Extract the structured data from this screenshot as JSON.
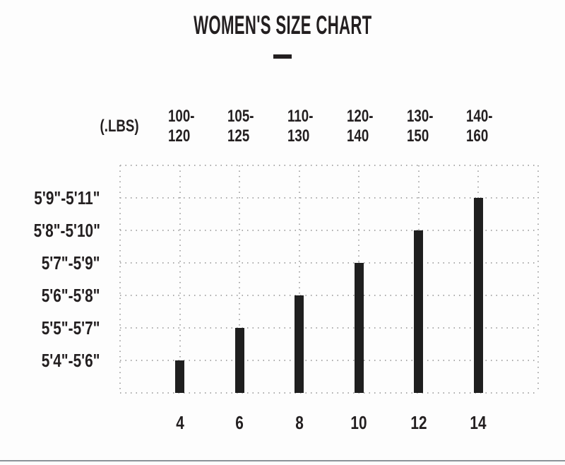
{
  "header": {
    "title": "WOMEN'S SIZE CHART",
    "divider_dash": "—"
  },
  "chart_data": {
    "type": "bar",
    "title": "WOMEN'S SIZE CHART",
    "weight_unit_label": "(.LBS)",
    "x_axis_categories_sizes": [
      "4",
      "6",
      "8",
      "10",
      "12",
      "14"
    ],
    "weight_ranges": [
      "100-120",
      "105-125",
      "110-130",
      "120-140",
      "130-150",
      "140-160"
    ],
    "y_axis_labels_top_to_bottom": [
      "5'9\"-5'11\"",
      "5'8\"-5'10\"",
      "5'7\"-5'9\"",
      "5'6\"-5'8\"",
      "5'5\"-5'7\"",
      "5'4\"-5'6\""
    ],
    "columns": [
      {
        "size": "4",
        "weight_range": "100-120",
        "height_range": "5'4\"-5'6\"",
        "bar_units": 1
      },
      {
        "size": "6",
        "weight_range": "105-125",
        "height_range": "5'5\"-5'7\"",
        "bar_units": 2
      },
      {
        "size": "8",
        "weight_range": "110-130",
        "height_range": "5'6\"-5'8\"",
        "bar_units": 3
      },
      {
        "size": "10",
        "weight_range": "120-140",
        "height_range": "5'7\"-5'9\"",
        "bar_units": 4
      },
      {
        "size": "12",
        "weight_range": "130-150",
        "height_range": "5'8\"-5'10\"",
        "bar_units": 5
      },
      {
        "size": "14",
        "weight_range": "140-160",
        "height_range": "5'9\"-5'11\"",
        "bar_units": 6
      }
    ],
    "grid": {
      "rows": 7,
      "cols": 7,
      "line_style": "dotted"
    },
    "legend": "none",
    "colors": {
      "bar": "#1f1f1f",
      "text": "#231f20",
      "grid_line": "#ababab",
      "background": "#fdfdfd",
      "bottom_rule": "#8b9298"
    }
  }
}
